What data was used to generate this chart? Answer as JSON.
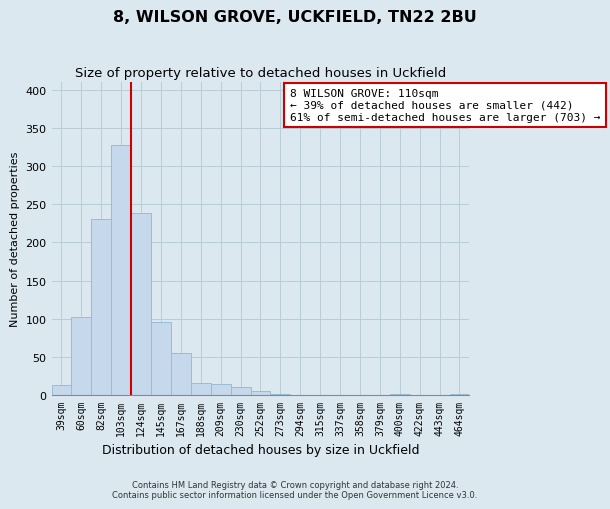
{
  "title": "8, WILSON GROVE, UCKFIELD, TN22 2BU",
  "subtitle": "Size of property relative to detached houses in Uckfield",
  "xlabel": "Distribution of detached houses by size in Uckfield",
  "ylabel": "Number of detached properties",
  "bar_labels": [
    "39sqm",
    "60sqm",
    "82sqm",
    "103sqm",
    "124sqm",
    "145sqm",
    "167sqm",
    "188sqm",
    "209sqm",
    "230sqm",
    "252sqm",
    "273sqm",
    "294sqm",
    "315sqm",
    "337sqm",
    "358sqm",
    "379sqm",
    "400sqm",
    "422sqm",
    "443sqm",
    "464sqm"
  ],
  "bar_values": [
    13,
    102,
    230,
    328,
    238,
    96,
    55,
    16,
    14,
    10,
    5,
    2,
    0,
    0,
    0,
    0,
    0,
    2,
    0,
    0,
    2
  ],
  "bar_color": "#c6d9ec",
  "bar_edge_color": "#9abcd4",
  "vline_color": "#cc0000",
  "annotation_text": "8 WILSON GROVE: 110sqm\n← 39% of detached houses are smaller (442)\n61% of semi-detached houses are larger (703) →",
  "annotation_box_color": "white",
  "annotation_box_edge": "#cc0000",
  "ylim": [
    0,
    410
  ],
  "yticks": [
    0,
    50,
    100,
    150,
    200,
    250,
    300,
    350,
    400
  ],
  "footer_line1": "Contains HM Land Registry data © Crown copyright and database right 2024.",
  "footer_line2": "Contains public sector information licensed under the Open Government Licence v3.0.",
  "bg_color": "#dce8f0",
  "plot_bg_color": "#dce8f0",
  "grid_color": "#b8cdd8"
}
